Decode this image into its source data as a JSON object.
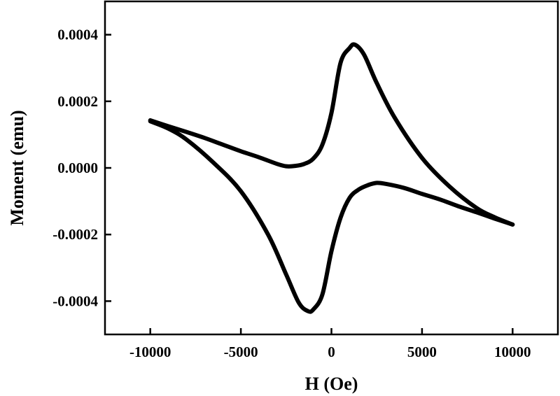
{
  "chart_data": {
    "type": "line",
    "title": "",
    "xlabel": "H (Oe)",
    "ylabel": "Moment (emu)",
    "xlim": [
      -12500,
      12500
    ],
    "ylim": [
      -0.0005,
      0.0005
    ],
    "xticks": [
      -10000,
      -5000,
      0,
      5000,
      10000
    ],
    "xtick_labels": [
      "-10000",
      "-5000",
      "0",
      "5000",
      "10000"
    ],
    "yticks": [
      -0.0004,
      -0.0002,
      0.0,
      0.0002,
      0.0004
    ],
    "ytick_labels": [
      "-0.0004",
      "-0.0002",
      "0.0000",
      "0.0002",
      "0.0004"
    ],
    "grid": false,
    "legend": "none",
    "line_color": "#000000",
    "series": [
      {
        "x": [
          -10000,
          -9000,
          -8000,
          -7000,
          -6000,
          -5000,
          -4000,
          -3000,
          -2500,
          -2000,
          -1500,
          -1000,
          -500,
          0,
          500,
          1000,
          1300,
          1800,
          2500,
          3500,
          5000,
          6500,
          8000,
          9000,
          10000
        ],
        "y": [
          0.000143,
          0.000125,
          0.000108,
          9e-05,
          7e-05,
          5e-05,
          3.2e-05,
          1.2e-05,
          5e-06,
          6e-06,
          1.2e-05,
          2.8e-05,
          7e-05,
          0.000165,
          0.000315,
          0.00036,
          0.00037,
          0.00034,
          0.000255,
          0.00015,
          3e-05,
          -5.5e-05,
          -0.00012,
          -0.000148,
          -0.00017
        ]
      },
      {
        "x": [
          10000,
          9000,
          8000,
          7000,
          6000,
          5000,
          4000,
          3000,
          2500,
          2000,
          1500,
          1000,
          500,
          0,
          -500,
          -1000,
          -1300,
          -1800,
          -2500,
          -3500,
          -5000,
          -6500,
          -8000,
          -9000,
          -10000
        ],
        "y": [
          -0.00017,
          -0.000152,
          -0.000133,
          -0.000115,
          -9.5e-05,
          -7.8e-05,
          -6e-05,
          -4.8e-05,
          -4.5e-05,
          -5.2e-05,
          -6.5e-05,
          -9e-05,
          -0.00015,
          -0.00025,
          -0.00038,
          -0.000425,
          -0.00043,
          -0.000405,
          -0.00032,
          -0.0002,
          -7e-05,
          1.5e-05,
          8.5e-05,
          0.000118,
          0.00014
        ]
      }
    ]
  }
}
